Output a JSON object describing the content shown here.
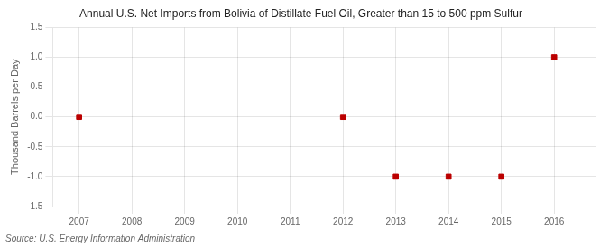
{
  "chart_data": {
    "type": "scatter",
    "title": "Annual U.S. Net Imports from Bolivia of Distillate Fuel Oil, Greater than 15 to 500 ppm Sulfur",
    "y_label": "Thousand Barrels per Day",
    "annotations": [
      "Source: U.S. Energy Information Administration"
    ],
    "x": [
      2007,
      2012,
      2013,
      2014,
      2015,
      2016
    ],
    "values": [
      0,
      0,
      -1,
      -1,
      -1,
      1
    ],
    "color": "#bb0000",
    "marker": "square",
    "xlim": [
      2006.5,
      2016.8
    ],
    "xticks": [
      2007,
      2008,
      2009,
      2010,
      2011,
      2012,
      2013,
      2014,
      2015,
      2016
    ],
    "ylim": [
      -1.5,
      1.5
    ],
    "yticks": [
      -1.5,
      {
        "value": -1.0,
        "label": "-1.0"
      },
      -0.5,
      {
        "value": 0.0,
        "label": "0.0"
      },
      0.5,
      {
        "value": 1.0,
        "label": "1.0"
      },
      1.5
    ],
    "grid": true
  }
}
